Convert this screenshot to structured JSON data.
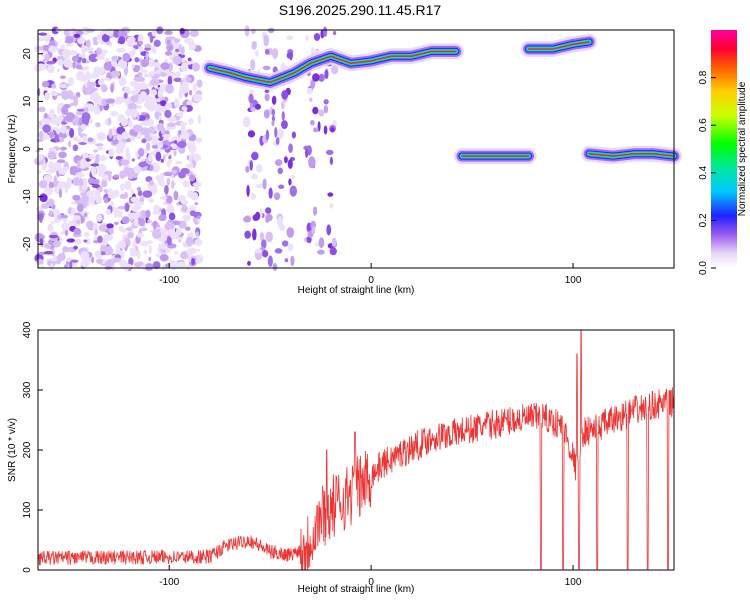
{
  "figure": {
    "title": "S196.2025.290.11.45.R17"
  },
  "chart_data": [
    {
      "type": "heatmap",
      "xlabel": "Height of straight line (km)",
      "ylabel": "Frequency (Hz)",
      "xlim": [
        -165,
        150
      ],
      "ylim": [
        -25,
        25
      ],
      "xticks": [
        -100,
        0,
        100
      ],
      "yticks": [
        -20,
        -10,
        0,
        10,
        20
      ],
      "colorbar": {
        "label": "Normalized spectral amplitude",
        "range": [
          0,
          1
        ],
        "ticks": [
          0.0,
          0.2,
          0.4,
          0.6,
          0.8
        ]
      },
      "features": {
        "noise_region_x": [
          -165,
          -85
        ],
        "upper_track": [
          [
            -80,
            17
          ],
          [
            -70,
            16
          ],
          [
            -62,
            15
          ],
          [
            -50,
            14
          ],
          [
            -38,
            16
          ],
          [
            -30,
            18
          ],
          [
            -20,
            19.5
          ],
          [
            -10,
            18
          ],
          [
            0,
            18.5
          ],
          [
            10,
            19.5
          ],
          [
            20,
            19.5
          ],
          [
            30,
            20.5
          ],
          [
            42,
            20.5
          ]
        ],
        "upper_track_right": [
          [
            78,
            21
          ],
          [
            90,
            21
          ],
          [
            100,
            22
          ],
          [
            108,
            22.5
          ]
        ],
        "lower_track": [
          [
            45,
            -1.5
          ],
          [
            60,
            -1.5
          ],
          [
            78,
            -1.5
          ]
        ],
        "lower_track_right": [
          [
            108,
            -1
          ],
          [
            120,
            -1.5
          ],
          [
            130,
            -1
          ],
          [
            140,
            -1
          ],
          [
            150,
            -1.5
          ]
        ],
        "sparse_streaks_x": [
          -55,
          -45,
          -25
        ]
      }
    },
    {
      "type": "line",
      "xlabel": "Height of straight line (km)",
      "ylabel": "SNR (10 * v/v)",
      "xlim": [
        -165,
        150
      ],
      "ylim": [
        0,
        400
      ],
      "xticks": [
        -100,
        0,
        100
      ],
      "yticks": [
        0,
        100,
        200,
        300,
        400
      ],
      "color": "#ee3333",
      "trend": [
        [
          -165,
          20
        ],
        [
          -80,
          22
        ],
        [
          -72,
          40
        ],
        [
          -60,
          50
        ],
        [
          -50,
          30
        ],
        [
          -40,
          25
        ],
        [
          -32,
          40
        ],
        [
          -25,
          90
        ],
        [
          -15,
          115
        ],
        [
          -5,
          140
        ],
        [
          5,
          175
        ],
        [
          15,
          195
        ],
        [
          30,
          220
        ],
        [
          50,
          235
        ],
        [
          70,
          250
        ],
        [
          85,
          255
        ],
        [
          95,
          240
        ],
        [
          100,
          190
        ],
        [
          102,
          160
        ],
        [
          105,
          230
        ],
        [
          110,
          235
        ],
        [
          120,
          250
        ],
        [
          130,
          265
        ],
        [
          140,
          275
        ],
        [
          150,
          280
        ]
      ],
      "dropouts_x": [
        84,
        95,
        103,
        112,
        127,
        137,
        147
      ],
      "spikes": [
        [
          -22,
          200
        ],
        [
          -8,
          230
        ],
        [
          102,
          360
        ],
        [
          104,
          400
        ]
      ]
    }
  ]
}
